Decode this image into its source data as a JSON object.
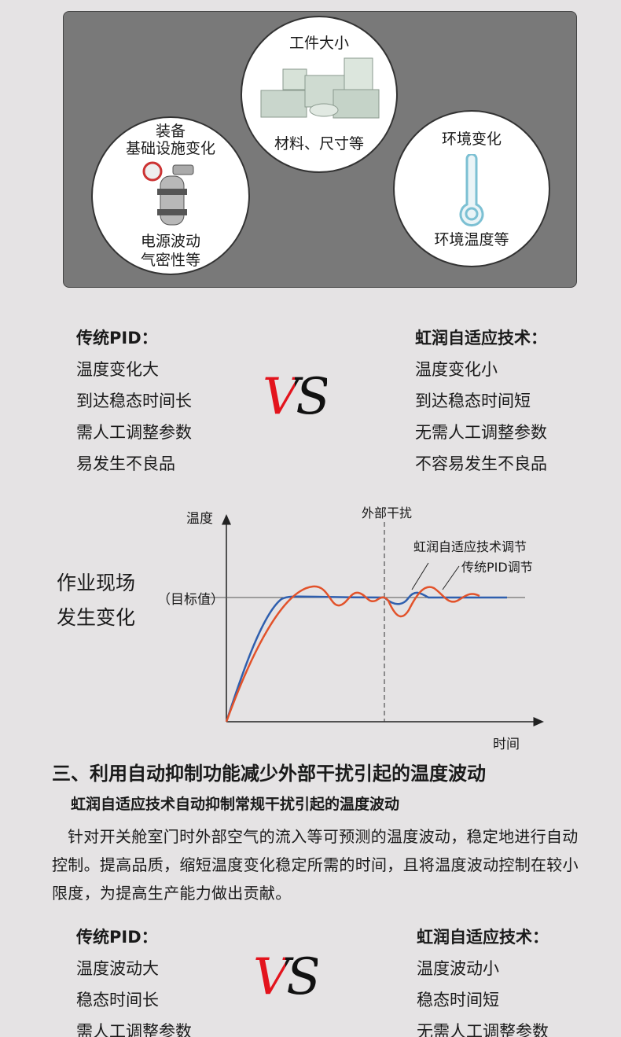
{
  "factors": [
    {
      "title_lines": [
        "工件大小"
      ],
      "caption_lines": [
        "材料、尺寸等"
      ]
    },
    {
      "title_lines": [
        "装备",
        "基础设施变化"
      ],
      "caption_lines": [
        "电源波动",
        "气密性等"
      ]
    },
    {
      "title_lines": [
        "环境变化"
      ],
      "caption_lines": [
        "环境温度等"
      ]
    }
  ],
  "compare_1": {
    "left": {
      "title": "传统PID：",
      "items": [
        "温度变化大",
        "到达稳态时间长",
        "需人工调整参数",
        "易发生不良品"
      ]
    },
    "vs": "VS",
    "right": {
      "title": "虹润自适应技术：",
      "items": [
        "温度变化小",
        "到达稳态时间短",
        "无需人工调整参数",
        "不容易发生不良品"
      ]
    }
  },
  "graph": {
    "y_label": "温度",
    "x_label": "时间",
    "target": "（目标值）",
    "disturbance": "外部干扰",
    "legend_adaptive": "虹润自适应技术调节",
    "legend_pid": "传统PID调节",
    "side_note": [
      "作业现场",
      "发生变化"
    ]
  },
  "section": {
    "heading": "三、利用自动抑制功能减少外部干扰引起的温度波动",
    "subheading": "虹润自适应技术自动抑制常规干扰引起的温度波动",
    "paragraph": "针对开关舱室门时外部空气的流入等可预测的温度波动，稳定地进行自动控制。提高品质，缩短温度变化稳定所需的时间，且将温度波动控制在较小限度，为提高生产能力做出贡献。"
  },
  "compare_2": {
    "left": {
      "title": "传统PID：",
      "items": [
        "温度波动大",
        "稳态时间长",
        "需人工调整参数"
      ]
    },
    "vs": "VS",
    "right": {
      "title": "虹润自适应技术：",
      "items": [
        "温度波动小",
        "稳态时间短",
        "无需人工调整参数"
      ]
    }
  }
}
